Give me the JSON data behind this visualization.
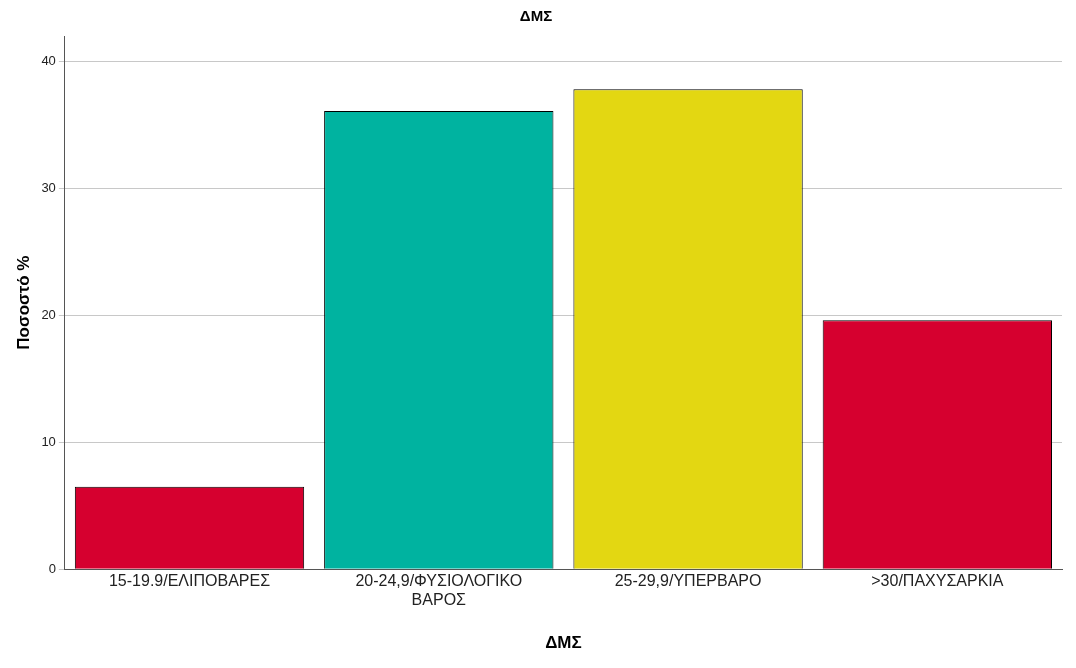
{
  "chart_data": {
    "type": "bar",
    "title": "ΔΜΣ",
    "xlabel": "ΔΜΣ",
    "ylabel": "Ποσοστό %",
    "categories": [
      "15-19.9/ΕΛΙΠΟΒΑΡΕΣ",
      "20-24,9/ΦΥΣΙΟΛΟΓΙΚΟ ΒΑΡΟΣ",
      "25-29,9/ΥΠΕΡΒΑΡΟ",
      ">30/ΠΑΧΥΣΑΡΚΙΑ"
    ],
    "values": [
      6.5,
      36.1,
      37.8,
      19.6
    ],
    "colors": [
      "#d6002f",
      "#00b3a0",
      "#e3d712",
      "#d6002f"
    ],
    "ylim": [
      0,
      42
    ],
    "yticks": [
      0,
      10,
      20,
      30,
      40
    ],
    "grid": "y",
    "legend": false
  }
}
